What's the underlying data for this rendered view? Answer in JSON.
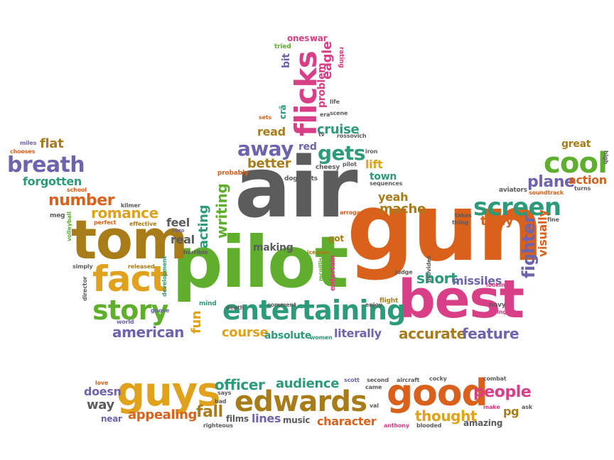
{
  "words": {
    "air": "air",
    "gun": "gun",
    "pilot": "pilot",
    "tom": "tom",
    "best": "best",
    "entertaining": "entertaining",
    "fact": "fact",
    "story": "story",
    "flicks": "flicks",
    "screen": "screen",
    "cool": "cool",
    "guys": "guys",
    "good": "good",
    "edwards": "edwards",
    "away": "away",
    "gets": "gets",
    "breath": "breath",
    "romance": "romance",
    "number": "number",
    "american": "american",
    "course": "course",
    "absolute": "absolute",
    "literally": "literally",
    "accurate": "accurate",
    "feature": "feature",
    "short": "short",
    "missiles": "missiles",
    "fighter": "fighter",
    "visually": "visually",
    "plane": "plane",
    "action": "action",
    "great": "great",
    "truly": "truly",
    "macho": "macho",
    "yeah": "yeah",
    "town": "town",
    "lift": "lift",
    "better": "better",
    "read": "read",
    "red": "red",
    "cruise": "cruise",
    "problem": "problem",
    "eagle": "eagle",
    "bit": "bit",
    "ones": "ones",
    "war": "war",
    "tried": "tried",
    "rating": "rating",
    "writing": "writing",
    "acting": "acting",
    "making": "making",
    "real": "real",
    "feel": "feel",
    "fun": "fun",
    "forgotten": "forgotten",
    "flat": "flat",
    "miles": "miles",
    "chooses": "chooses",
    "school": "school",
    "meg": "meg",
    "kilmer": "kilmer",
    "perfect": "perfect",
    "effective": "effective",
    "volleyball": "volleyball",
    "simply": "simply",
    "director": "director",
    "released": "released",
    "development": "development",
    "goose": "goose",
    "hero": "hero",
    "horrible": "horrible",
    "mind": "mind",
    "death": "death",
    "comment": "comment",
    "iceman": "iceman",
    "mcgillis": "mcgillis",
    "entertain": "entertain",
    "enjoy": "enjoy",
    "flight": "flight",
    "judge": "judge",
    "got": "got",
    "arrogance": "arrogance",
    "cheesy": "cheesy",
    "dogfights": "dogfights",
    "probably": "probably",
    "pilot_small": "pilot",
    "sequences": "sequences",
    "iron": "iron",
    "rossovich": "rossovich",
    "tv": "tv",
    "era": "era",
    "cra": "crã",
    "sets": "sets",
    "scene": "scene",
    "life": "life",
    "aviators": "aviators",
    "soundtrack": "soundtrack",
    "turns": "turns",
    "high": "high",
    "takes": "takes",
    "thing": "thing",
    "provides": "provides",
    "looking": "looking",
    "navy": "navy",
    "bring": "bring",
    "fine": "fine",
    "world": "world",
    "women": "women",
    "officer": "officer",
    "audience": "audience",
    "people": "people",
    "thought": "thought",
    "appealing": "appealing",
    "fall": "fall",
    "films": "films",
    "lines": "lines",
    "music": "music",
    "character": "character",
    "way": "way",
    "doesn": "doesn",
    "near": "near",
    "love": "love",
    "says": "says",
    "bad": "bad",
    "righteous": "righteous",
    "scott": "scott",
    "second": "second",
    "came": "came",
    "aircraft": "aircraft",
    "cocky": "cocky",
    "val": "val",
    "anthony": "anthony",
    "blooded": "blooded",
    "amazing": "amazing",
    "pg": "pg",
    "combat": "combat",
    "make": "make",
    "ask": "ask"
  }
}
